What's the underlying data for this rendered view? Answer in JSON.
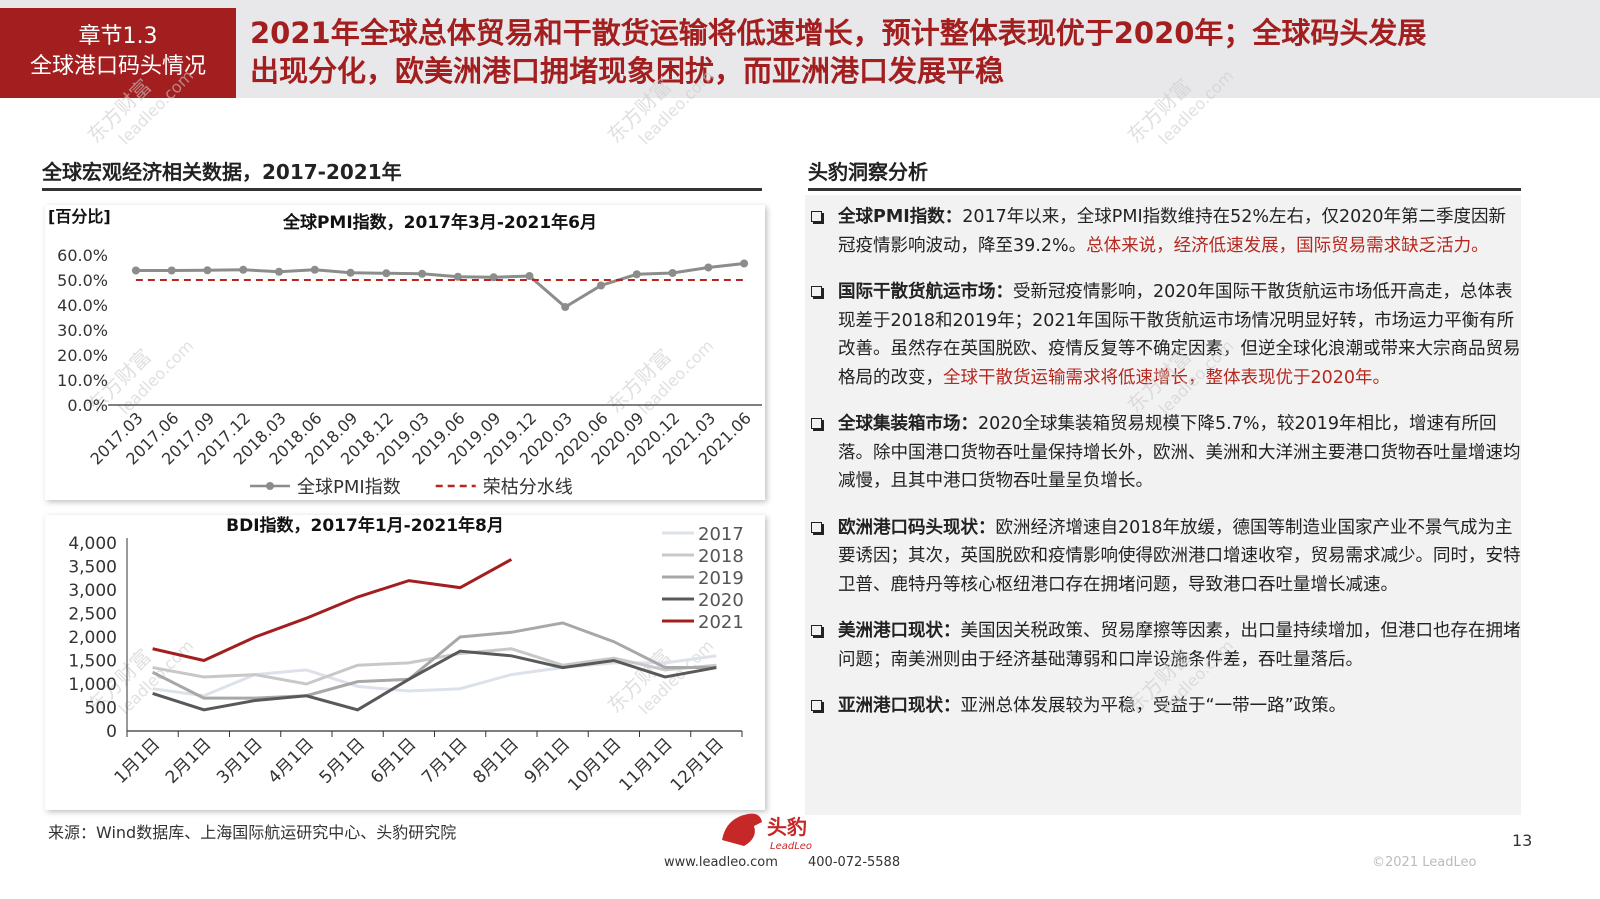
{
  "header": {
    "section_number": "章节1.3",
    "section_name": "全球港口码头情况",
    "title_lines": [
      "2021年全球总体贸易和干散货运输将低速增长，预计整体表现优于2020年；全球码头发展",
      "出现分化，欧美洲港口拥堵现象困扰，而亚洲港口发展平稳"
    ]
  },
  "left_title": "全球宏观经济相关数据，2017-2021年",
  "right_title": "头豹洞察分析",
  "chart_data": [
    {
      "type": "line",
      "title": "全球PMI指数，2017年3月-2021年6月",
      "y_label": "[百分比]",
      "markers": true,
      "legend": "bottom",
      "categories": [
        "2017.03",
        "2017.06",
        "2017.09",
        "2017.12",
        "2018.03",
        "2018.06",
        "2018.09",
        "2018.12",
        "2019.03",
        "2019.06",
        "2019.09",
        "2019.12",
        "2020.03",
        "2020.06",
        "2020.09",
        "2020.12",
        "2021.03",
        "2021.06"
      ],
      "series": [
        {
          "name": "全球PMI指数",
          "color": "#8c8c8c",
          "values": [
            53.8,
            53.8,
            53.9,
            54.1,
            53.3,
            54.1,
            52.9,
            52.7,
            52.5,
            51.3,
            51.1,
            51.6,
            39.2,
            47.8,
            52.3,
            52.8,
            55.0,
            56.6
          ]
        },
        {
          "name": "荣枯分水线",
          "color": "#b5281f",
          "line_style": "dashed",
          "values": [
            50,
            50,
            50,
            50,
            50,
            50,
            50,
            50,
            50,
            50,
            50,
            50,
            50,
            50,
            50,
            50,
            50,
            50
          ]
        }
      ],
      "ylim": [
        0,
        60
      ],
      "yticks": [
        {
          "value": 0,
          "label": "0.0%"
        },
        {
          "value": 10,
          "label": "10.0%"
        },
        {
          "value": 20,
          "label": "20.0%"
        },
        {
          "value": 30,
          "label": "30.0%"
        },
        {
          "value": 40,
          "label": "40.0%"
        },
        {
          "value": 50,
          "label": "50.0%"
        },
        {
          "value": 60,
          "label": "60.0%"
        }
      ]
    },
    {
      "type": "line",
      "title": "BDI指数，2017年1月-2021年8月",
      "legend": "right",
      "categories": [
        "1月1日",
        "2月1日",
        "3月1日",
        "4月1日",
        "5月1日",
        "6月1日",
        "7月1日",
        "8月1日",
        "9月1日",
        "10月1日",
        "11月1日",
        "12月1日"
      ],
      "series": [
        {
          "name": "2017",
          "color": "#dde2ea",
          "values": [
            900,
            750,
            1200,
            1300,
            950,
            850,
            900,
            1200,
            1350,
            1450,
            1450,
            1600
          ]
        },
        {
          "name": "2018",
          "color": "#c8c8c8",
          "values": [
            1350,
            1150,
            1200,
            1000,
            1400,
            1450,
            1650,
            1750,
            1400,
            1550,
            1300,
            1400
          ]
        },
        {
          "name": "2019",
          "color": "#a8a8a8",
          "values": [
            1250,
            700,
            700,
            750,
            1050,
            1100,
            2000,
            2100,
            2300,
            1900,
            1350,
            1350
          ]
        },
        {
          "name": "2020",
          "color": "#595959",
          "values": [
            800,
            450,
            650,
            750,
            450,
            1100,
            1700,
            1600,
            1350,
            1500,
            1150,
            1350
          ]
        },
        {
          "name": "2021",
          "color": "#a31f1f",
          "values": [
            1750,
            1500,
            2000,
            2400,
            2850,
            3200,
            3050,
            3650,
            null,
            null,
            null,
            null
          ]
        }
      ],
      "ylim": [
        0,
        4000
      ],
      "yticks": [
        0,
        500,
        {
          "value": 1000,
          "label": "1,000"
        },
        {
          "value": 1500,
          "label": "1,500"
        },
        {
          "value": 2000,
          "label": "2,000"
        },
        {
          "value": 2500,
          "label": "2,500"
        },
        {
          "value": 3000,
          "label": "3,000"
        },
        {
          "value": 3500,
          "label": "3,500"
        },
        {
          "value": 4000,
          "label": "4,000"
        }
      ]
    }
  ],
  "insights": [
    {
      "heading": "全球PMI指数：",
      "text": "2017年以来，全球PMI指数维持在52%左右，仅2020年第二季度因新冠疫情影响波动，降至39.2%。",
      "highlight": "总体来说，经济低速发展，国际贸易需求缺乏活力。"
    },
    {
      "heading": "国际干散货航运市场：",
      "text": "受新冠疫情影响，2020年国际干散货航运市场低开高走，总体表现差于2018和2019年；2021年国际干散货航运市场情况明显好转，市场运力平衡有所改善。虽然存在英国脱欧、疫情反复等不确定因素，但逆全球化浪潮或带来大宗商品贸易格局的改变，",
      "highlight": "全球干散货运输需求将低速增长，整体表现优于2020年。"
    },
    {
      "heading": "全球集装箱市场：",
      "text": "2020全球集装箱贸易规模下降5.7%，较2019年相比，增速有所回落。除中国港口货物吞吐量保持增长外，欧洲、美洲和大洋洲主要港口货物吞吐量增速均减慢，且其中港口货物吞吐量呈负增长。"
    },
    {
      "heading": "欧洲港口码头现状：",
      "text": "欧洲经济增速自2018年放缓，德国等制造业国家产业不景气成为主要诱因；其次，英国脱欧和疫情影响使得欧洲港口增速收窄，贸易需求减少。同时，安特卫普、鹿特丹等核心枢纽港口存在拥堵问题，导致港口吞吐量增长减速。"
    },
    {
      "heading": "美洲港口现状：",
      "text": "美国因关税政策、贸易摩擦等因素，出口量持续增加，但港口也存在拥堵问题；南美洲则由于经济基础薄弱和口岸设施条件差，吞吐量落后。"
    },
    {
      "heading": "亚洲港口现状：",
      "text": "亚洲总体发展较为平稳，受益于“一带一路”政策。"
    }
  ],
  "footer": {
    "source": "来源：Wind数据库、上海国际航运研究中心、头豹研究院",
    "logo": "头豹",
    "logo_en": "LeadLeo",
    "website": "www.leadleo.com",
    "phone": "400-072-5588",
    "page": "13",
    "copyright": "©2021 LeadLeo"
  },
  "watermark": [
    "东方财富",
    "leadleo.com"
  ]
}
